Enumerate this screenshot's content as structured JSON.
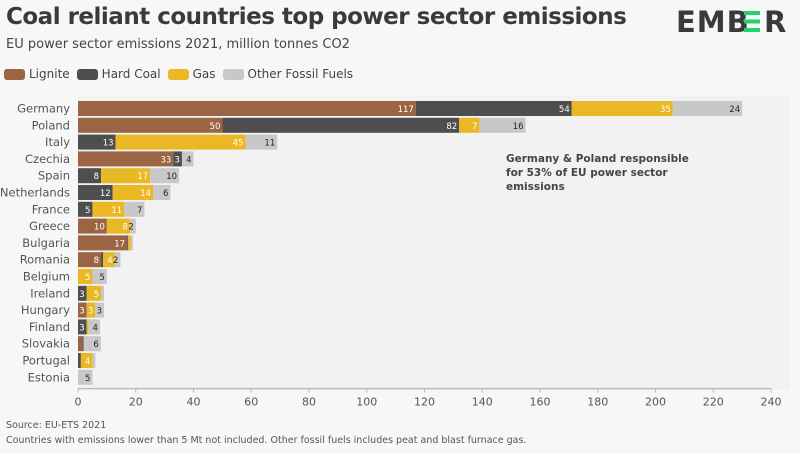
{
  "header": {
    "title": "Coal reliant countries top power sector emissions",
    "subtitle": "EU power sector emissions 2021, million tonnes CO2",
    "logo_text": "EMBER"
  },
  "colors": {
    "Lignite": "#9b6543",
    "Hard Coal": "#4e4e4e",
    "Gas": "#e9b824",
    "Other Fossil Fuels": "#c8c8c8",
    "accent": "#1ed46f"
  },
  "chart_data": {
    "type": "bar",
    "orientation": "horizontal",
    "stacked": true,
    "title": "Coal reliant countries top power sector emissions",
    "subtitle": "EU power sector emissions 2021, million tonnes CO2",
    "xlabel": "",
    "ylabel": "",
    "xlim": [
      0,
      240
    ],
    "xticks": [
      0,
      20,
      40,
      60,
      80,
      100,
      120,
      140,
      160,
      180,
      200,
      220,
      240
    ],
    "legend": [
      "Lignite",
      "Hard Coal",
      "Gas",
      "Other Fossil Fuels"
    ],
    "legend_position": "top-left",
    "categories": [
      "Germany",
      "Poland",
      "Italy",
      "Czechia",
      "Spain",
      "Netherlands",
      "France",
      "Greece",
      "Bulgaria",
      "Romania",
      "Belgium",
      "Ireland",
      "Hungary",
      "Finland",
      "Slovakia",
      "Portugal",
      "Estonia"
    ],
    "series": [
      {
        "name": "Lignite",
        "values": [
          117,
          50,
          0,
          33,
          0,
          0,
          0,
          10,
          17,
          8,
          0,
          0,
          3,
          0,
          1.5,
          0,
          0
        ]
      },
      {
        "name": "Hard Coal",
        "values": [
          54,
          82,
          13,
          3,
          8,
          12,
          5,
          0,
          0.3,
          0.7,
          0,
          3,
          0,
          3,
          0.4,
          1,
          0
        ]
      },
      {
        "name": "Gas",
        "values": [
          35,
          7,
          45,
          0,
          17,
          14,
          11,
          8,
          1,
          4,
          5,
          5,
          3,
          0.6,
          0,
          4,
          0
        ]
      },
      {
        "name": "Other Fossil Fuels",
        "values": [
          24,
          16,
          11,
          4,
          10,
          6,
          7,
          2,
          0.7,
          2,
          5,
          1,
          3,
          4,
          6,
          1,
          5
        ]
      }
    ],
    "annotation": "Germany & Poland responsible for 53% of EU power sector emissions"
  },
  "annotation_lines": [
    "Germany & Poland responsible",
    "for 53% of EU power sector",
    "emissions"
  ],
  "footer": {
    "source": "Source: EU-ETS 2021",
    "note": "Countries with emissions lower than 5 Mt not included. Other fossil fuels includes peat and blast furnace gas."
  }
}
